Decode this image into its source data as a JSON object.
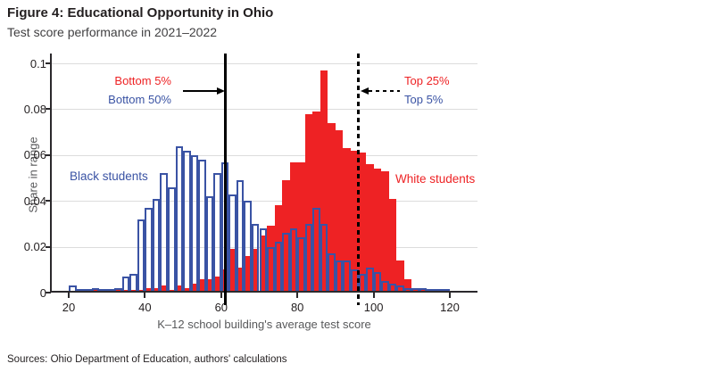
{
  "figure": {
    "title": "Figure 4: Educational Opportunity in Ohio",
    "subtitle": "Test score performance in 2021–2022",
    "source": "Sources: Ohio Department of Education, authors' calculations"
  },
  "colors": {
    "white_students_fill": "#ee2224",
    "black_students_outline": "#3a53a4",
    "reference_line": "#000000",
    "gridline": "#dcdcdc",
    "axis": "#2b292c"
  },
  "chart_data": {
    "type": "bar",
    "subtype": "overlaid-histograms",
    "title": "Test score performance in 2021–2022",
    "xlabel": "K–12 school building's average test score",
    "ylabel": "Share in range",
    "xlim": [
      15,
      128
    ],
    "ylim": [
      0,
      0.104
    ],
    "grid": "horizontal",
    "legend_position": "in-plot-text-labels",
    "bin_start": 20,
    "bin_width": 2,
    "x_ticks": [
      {
        "v": 20,
        "label": "20"
      },
      {
        "v": 40,
        "label": "40"
      },
      {
        "v": 60,
        "label": "60"
      },
      {
        "v": 80,
        "label": "80"
      },
      {
        "v": 100,
        "label": "100"
      },
      {
        "v": 120,
        "label": "120"
      }
    ],
    "y_ticks": [
      {
        "v": 0,
        "label": "0"
      },
      {
        "v": 0.02,
        "label": "0.02"
      },
      {
        "v": 0.04,
        "label": "0.04"
      },
      {
        "v": 0.06,
        "label": "0.06"
      },
      {
        "v": 0.08,
        "label": "0.08"
      },
      {
        "v": 0.1,
        "label": "0.1"
      }
    ],
    "series": [
      {
        "name": "White students",
        "style": "filled",
        "color": "#ee2224",
        "values": [
          0,
          0.001,
          0.001,
          0.001,
          0.001,
          0.001,
          0.001,
          0.001,
          0.001,
          0.001,
          0.002,
          0.002,
          0.003,
          0.001,
          0.003,
          0.002,
          0.004,
          0.006,
          0.006,
          0.007,
          0.01,
          0.019,
          0.011,
          0.016,
          0.019,
          0.025,
          0.029,
          0.038,
          0.049,
          0.057,
          0.057,
          0.078,
          0.079,
          0.097,
          0.074,
          0.071,
          0.063,
          0.062,
          0.061,
          0.056,
          0.054,
          0.053,
          0.041,
          0.014,
          0.006,
          0.002,
          0.001,
          0.001,
          0,
          0
        ]
      },
      {
        "name": "Black students",
        "style": "outline",
        "color": "#3a53a4",
        "values": [
          0.003,
          0.001,
          0.001,
          0.002,
          0.001,
          0.001,
          0.002,
          0.007,
          0.008,
          0.032,
          0.037,
          0.041,
          0.052,
          0.046,
          0.064,
          0.062,
          0.06,
          0.058,
          0.042,
          0.052,
          0.057,
          0.043,
          0.049,
          0.04,
          0.03,
          0.028,
          0.02,
          0.022,
          0.026,
          0.028,
          0.024,
          0.03,
          0.037,
          0.03,
          0.017,
          0.014,
          0.014,
          0.01,
          0.008,
          0.011,
          0.009,
          0.005,
          0.004,
          0.003,
          0.002,
          0.002,
          0.002,
          0.001,
          0.001,
          0.001
        ]
      }
    ],
    "reference_lines": [
      {
        "x": 61,
        "style": "solid",
        "arrow": "right",
        "label_lines": [
          {
            "text": "Bottom 5%",
            "color": "#ee2224"
          },
          {
            "text": "Bottom 50%",
            "color": "#3a53a4"
          }
        ]
      },
      {
        "x": 96,
        "style": "dotted",
        "arrow": "left",
        "label_lines": [
          {
            "text": "Top 25%",
            "color": "#ee2224"
          },
          {
            "text": "Top 5%",
            "color": "#3a53a4"
          }
        ]
      }
    ]
  }
}
